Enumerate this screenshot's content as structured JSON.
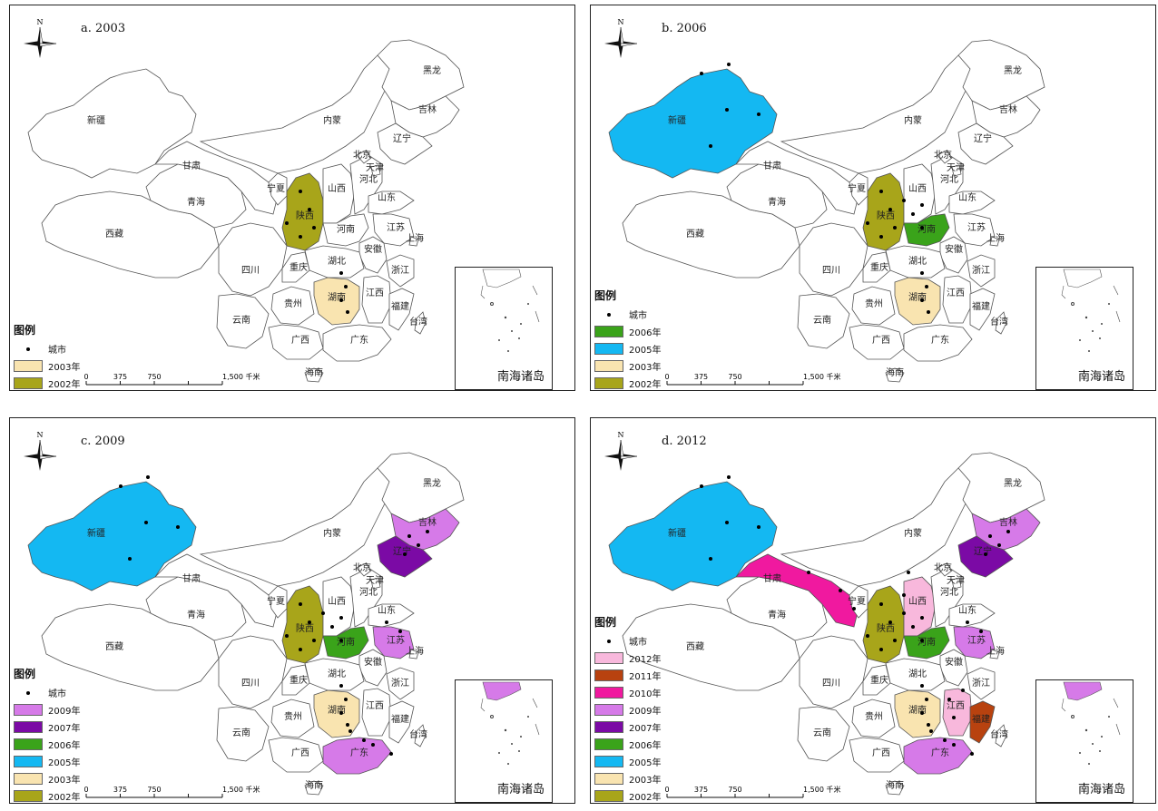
{
  "panels": [
    {
      "title": "a. 2003",
      "legend": [
        {
          "label": "城市",
          "type": "dot"
        },
        {
          "label": "2003年",
          "color": "#f9e4b0"
        },
        {
          "label": "2002年",
          "color": "#a8a51a"
        }
      ],
      "highlight": {
        "陕西": "#a8a51a",
        "湖南": "#f9e4b0"
      },
      "cities": [
        [
          320,
          205
        ],
        [
          330,
          225
        ],
        [
          335,
          245
        ],
        [
          305,
          240
        ],
        [
          320,
          255
        ],
        [
          365,
          295
        ],
        [
          370,
          310
        ],
        [
          365,
          325
        ],
        [
          372,
          338
        ]
      ]
    },
    {
      "title": "b. 2006",
      "legend": [
        {
          "label": "城市",
          "type": "dot"
        },
        {
          "label": "2006年",
          "color": "#3aa31a"
        },
        {
          "label": "2005年",
          "color": "#14b8f2"
        },
        {
          "label": "2003年",
          "color": "#f9e4b0"
        },
        {
          "label": "2002年",
          "color": "#a8a51a"
        }
      ],
      "highlight": {
        "新疆": "#14b8f2",
        "陕西": "#a8a51a",
        "河南": "#3aa31a",
        "湖南": "#f9e4b0"
      },
      "cities": [
        [
          122,
          75
        ],
        [
          152,
          65
        ],
        [
          150,
          115
        ],
        [
          185,
          120
        ],
        [
          132,
          155
        ],
        [
          320,
          205
        ],
        [
          330,
          225
        ],
        [
          335,
          245
        ],
        [
          305,
          240
        ],
        [
          320,
          255
        ],
        [
          345,
          215
        ],
        [
          365,
          220
        ],
        [
          355,
          230
        ],
        [
          365,
          245
        ],
        [
          365,
          295
        ],
        [
          370,
          310
        ],
        [
          365,
          325
        ],
        [
          372,
          338
        ]
      ]
    },
    {
      "title": "c. 2009",
      "legend": [
        {
          "label": "城市",
          "type": "dot"
        },
        {
          "label": "2009年",
          "color": "#d67ae8"
        },
        {
          "label": "2007年",
          "color": "#7b0aa5"
        },
        {
          "label": "2006年",
          "color": "#3aa31a"
        },
        {
          "label": "2005年",
          "color": "#14b8f2"
        },
        {
          "label": "2003年",
          "color": "#f9e4b0"
        },
        {
          "label": "2002年",
          "color": "#a8a51a"
        }
      ],
      "highlight": {
        "新疆": "#14b8f2",
        "陕西": "#a8a51a",
        "河南": "#3aa31a",
        "湖南": "#f9e4b0",
        "吉林": "#d67ae8",
        "辽宁": "#7b0aa5",
        "江苏": "#d67ae8",
        "广东": "#d67ae8"
      },
      "cities": [
        [
          122,
          75
        ],
        [
          152,
          65
        ],
        [
          150,
          115
        ],
        [
          185,
          120
        ],
        [
          132,
          155
        ],
        [
          320,
          205
        ],
        [
          330,
          225
        ],
        [
          335,
          245
        ],
        [
          305,
          240
        ],
        [
          320,
          255
        ],
        [
          345,
          215
        ],
        [
          365,
          220
        ],
        [
          355,
          230
        ],
        [
          365,
          245
        ],
        [
          365,
          295
        ],
        [
          370,
          310
        ],
        [
          365,
          325
        ],
        [
          372,
          338
        ],
        [
          440,
          130
        ],
        [
          450,
          140
        ],
        [
          460,
          125
        ],
        [
          435,
          150
        ],
        [
          415,
          225
        ],
        [
          430,
          235
        ],
        [
          375,
          345
        ],
        [
          390,
          355
        ],
        [
          400,
          360
        ],
        [
          420,
          370
        ]
      ]
    },
    {
      "title": "d. 2012",
      "legend": [
        {
          "label": "城市",
          "type": "dot"
        },
        {
          "label": "2012年",
          "color": "#f8b8dc"
        },
        {
          "label": "2011年",
          "color": "#b8420f"
        },
        {
          "label": "2010年",
          "color": "#f0199f"
        },
        {
          "label": "2009年",
          "color": "#d67ae8"
        },
        {
          "label": "2007年",
          "color": "#7b0aa5"
        },
        {
          "label": "2006年",
          "color": "#3aa31a"
        },
        {
          "label": "2005年",
          "color": "#14b8f2"
        },
        {
          "label": "2003年",
          "color": "#f9e4b0"
        },
        {
          "label": "2002年",
          "color": "#a8a51a"
        }
      ],
      "highlight": {
        "新疆": "#14b8f2",
        "陕西": "#a8a51a",
        "河南": "#3aa31a",
        "湖南": "#f9e4b0",
        "吉林": "#d67ae8",
        "辽宁": "#7b0aa5",
        "江苏": "#d67ae8",
        "广东": "#d67ae8",
        "甘肃": "#f0199f",
        "山西": "#f8b8dc",
        "江西": "#f8b8dc",
        "福建": "#b8420f"
      },
      "cities": [
        [
          122,
          75
        ],
        [
          152,
          65
        ],
        [
          150,
          115
        ],
        [
          185,
          120
        ],
        [
          132,
          155
        ],
        [
          320,
          205
        ],
        [
          330,
          225
        ],
        [
          335,
          245
        ],
        [
          305,
          240
        ],
        [
          320,
          255
        ],
        [
          345,
          215
        ],
        [
          365,
          220
        ],
        [
          355,
          230
        ],
        [
          365,
          245
        ],
        [
          365,
          295
        ],
        [
          370,
          310
        ],
        [
          365,
          325
        ],
        [
          372,
          338
        ],
        [
          440,
          130
        ],
        [
          450,
          140
        ],
        [
          460,
          125
        ],
        [
          435,
          150
        ],
        [
          415,
          225
        ],
        [
          430,
          235
        ],
        [
          375,
          345
        ],
        [
          390,
          355
        ],
        [
          400,
          360
        ],
        [
          420,
          370
        ],
        [
          240,
          170
        ],
        [
          275,
          190
        ],
        [
          290,
          210
        ],
        [
          350,
          170
        ],
        [
          345,
          195
        ],
        [
          400,
          330
        ],
        [
          395,
          310
        ],
        [
          410,
          300
        ]
      ]
    }
  ],
  "provinces_text": {
    "新疆": "新疆",
    "西藏": "西藏",
    "青海": "青海",
    "甘肃": "甘肃",
    "内蒙": "内蒙",
    "黑龙": "黑龙",
    "吉林": "吉林",
    "辽宁": "辽宁",
    "宁夏": "宁夏",
    "陕西": "陕西",
    "山西": "山西",
    "河北": "河北",
    "北京": "北京",
    "天津": "天津",
    "山东": "山东",
    "河南": "河南",
    "江苏": "江苏",
    "安徽": "安徽",
    "上海": "上海",
    "湖北": "湖北",
    "四川": "四川",
    "重庆": "重庆",
    "浙江": "浙江",
    "湖南": "湖南",
    "江西": "江西",
    "贵州": "贵州",
    "福建": "福建",
    "云南": "云南",
    "广西": "广西",
    "广东": "广东",
    "台湾": "台湾",
    "海南": "海南"
  },
  "legend_title": "图例",
  "inset_label": "南海诸岛",
  "north_label": "N",
  "scale": {
    "labels": [
      "0",
      "375",
      "750",
      "1,500 千米"
    ]
  }
}
